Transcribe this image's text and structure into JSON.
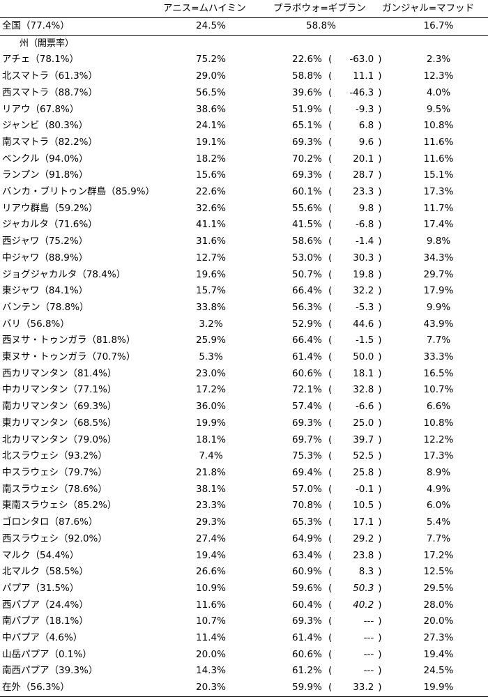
{
  "headers": {
    "candidate1": "アニス=ムハイミン",
    "candidate2": "プラボウォ=ギブラン",
    "candidate3": "ガンジャル=マフッド"
  },
  "national": {
    "name": "全国（77.4%）",
    "c1": "24.5%",
    "c2": "58.8%",
    "c3": "16.7%"
  },
  "subheader": "州（開票率）",
  "rows": [
    {
      "name": "アチェ（78.1%）",
      "c1": "75.2%",
      "c2": "22.6%",
      "diff": "-63.0",
      "c3": "2.3%"
    },
    {
      "name": "北スマトラ（61.3%）",
      "c1": "29.0%",
      "c2": "58.8%",
      "diff": "11.1",
      "c3": "12.3%"
    },
    {
      "name": "西スマトラ（88.7%）",
      "c1": "56.5%",
      "c2": "39.6%",
      "diff": "-46.3",
      "c3": "4.0%"
    },
    {
      "name": "リアウ（67.8%）",
      "c1": "38.6%",
      "c2": "51.9%",
      "diff": "-9.3",
      "c3": "9.5%"
    },
    {
      "name": "ジャンビ（80.3%）",
      "c1": "24.1%",
      "c2": "65.1%",
      "diff": "6.8",
      "c3": "10.8%"
    },
    {
      "name": "南スマトラ（82.2%）",
      "c1": "19.1%",
      "c2": "69.3%",
      "diff": "9.6",
      "c3": "11.6%"
    },
    {
      "name": "ベンクル（94.0%）",
      "c1": "18.2%",
      "c2": "70.2%",
      "diff": "20.1",
      "c3": "11.6%"
    },
    {
      "name": "ランプン（91.8%）",
      "c1": "15.6%",
      "c2": "69.3%",
      "diff": "28.7",
      "c3": "15.1%"
    },
    {
      "name": "バンカ・ブリトゥン群島（85.9%）",
      "c1": "22.6%",
      "c2": "60.1%",
      "diff": "23.3",
      "c3": "17.3%"
    },
    {
      "name": "リアウ群島（59.2%）",
      "c1": "32.6%",
      "c2": "55.6%",
      "diff": "9.8",
      "c3": "11.7%"
    },
    {
      "name": "ジャカルタ（71.6%）",
      "c1": "41.1%",
      "c2": "41.5%",
      "diff": "-6.8",
      "c3": "17.4%"
    },
    {
      "name": "西ジャワ（75.2%）",
      "c1": "31.6%",
      "c2": "58.6%",
      "diff": "-1.4",
      "c3": "9.8%"
    },
    {
      "name": "中ジャワ（88.9%）",
      "c1": "12.7%",
      "c2": "53.0%",
      "diff": "30.3",
      "c3": "34.3%"
    },
    {
      "name": "ジョグジャカルタ（78.4%）",
      "c1": "19.6%",
      "c2": "50.7%",
      "diff": "19.8",
      "c3": "29.7%"
    },
    {
      "name": "東ジャワ（84.1%）",
      "c1": "15.7%",
      "c2": "66.4%",
      "diff": "32.2",
      "c3": "17.9%"
    },
    {
      "name": "バンテン（78.8%）",
      "c1": "33.8%",
      "c2": "56.3%",
      "diff": "-5.3",
      "c3": "9.9%"
    },
    {
      "name": "バリ（56.8%）",
      "c1": "3.2%",
      "c2": "52.9%",
      "diff": "44.6",
      "c3": "43.9%"
    },
    {
      "name": "西ヌサ・トゥンガラ（81.8%）",
      "c1": "25.9%",
      "c2": "66.4%",
      "diff": "-1.5",
      "c3": "7.7%"
    },
    {
      "name": "東ヌサ・トゥンガラ（70.7%）",
      "c1": "5.3%",
      "c2": "61.4%",
      "diff": "50.0",
      "c3": "33.3%"
    },
    {
      "name": "西カリマンタン（81.4%）",
      "c1": "23.0%",
      "c2": "60.6%",
      "diff": "18.1",
      "c3": "16.5%"
    },
    {
      "name": "中カリマンタン（77.1%）",
      "c1": "17.2%",
      "c2": "72.1%",
      "diff": "32.8",
      "c3": "10.7%"
    },
    {
      "name": "南カリマンタン（69.3%）",
      "c1": "36.0%",
      "c2": "57.4%",
      "diff": "-6.6",
      "c3": "6.6%"
    },
    {
      "name": "東カリマンタン（68.5%）",
      "c1": "19.9%",
      "c2": "69.3%",
      "diff": "25.0",
      "c3": "10.8%"
    },
    {
      "name": "北カリマンタン（79.0%）",
      "c1": "18.1%",
      "c2": "69.7%",
      "diff": "39.7",
      "c3": "12.2%"
    },
    {
      "name": "北スラウェシ（93.2%）",
      "c1": "7.4%",
      "c2": "75.3%",
      "diff": "52.5",
      "c3": "17.3%"
    },
    {
      "name": "中スラウェシ（79.7%）",
      "c1": "21.8%",
      "c2": "69.4%",
      "diff": "25.8",
      "c3": "8.9%"
    },
    {
      "name": "南スラウェシ（78.6%）",
      "c1": "38.1%",
      "c2": "57.0%",
      "diff": "-0.1",
      "c3": "4.9%"
    },
    {
      "name": "東南スラウェシ（85.2%）",
      "c1": "23.3%",
      "c2": "70.8%",
      "diff": "10.5",
      "c3": "6.0%"
    },
    {
      "name": "ゴロンタロ（87.6%）",
      "c1": "29.3%",
      "c2": "65.3%",
      "diff": "17.1",
      "c3": "5.4%"
    },
    {
      "name": "西スラウェシ（92.0%）",
      "c1": "27.4%",
      "c2": "64.9%",
      "diff": "29.2",
      "c3": "7.7%"
    },
    {
      "name": "マルク（54.4%）",
      "c1": "19.4%",
      "c2": "63.4%",
      "diff": "23.8",
      "c3": "17.2%"
    },
    {
      "name": "北マルク（58.5%）",
      "c1": "26.6%",
      "c2": "60.9%",
      "diff": "8.3",
      "c3": "12.5%"
    },
    {
      "name": "パプア（31.5%）",
      "c1": "10.9%",
      "c2": "59.6%",
      "diff": "50.3",
      "diff_italic": true,
      "c3": "29.5%"
    },
    {
      "name": "西パプア（24.4%）",
      "c1": "11.6%",
      "c2": "60.4%",
      "diff": "40.2",
      "diff_italic": true,
      "c3": "28.0%"
    },
    {
      "name": "南パプア（18.1%）",
      "c1": "10.7%",
      "c2": "69.3%",
      "diff": "---",
      "c3": "20.0%"
    },
    {
      "name": "中パプア（4.6%）",
      "c1": "11.4%",
      "c2": "61.4%",
      "diff": "---",
      "c3": "27.3%"
    },
    {
      "name": "山岳パプア（0.1%）",
      "c1": "20.0%",
      "c2": "60.6%",
      "diff": "---",
      "c3": "19.4%"
    },
    {
      "name": "南西パプア（39.3%）",
      "c1": "14.3%",
      "c2": "61.2%",
      "diff": "---",
      "c3": "24.5%"
    },
    {
      "name": "在外（56.3%）",
      "c1": "20.3%",
      "c2": "59.9%",
      "diff": "33.2",
      "c3": "19.9%"
    }
  ]
}
